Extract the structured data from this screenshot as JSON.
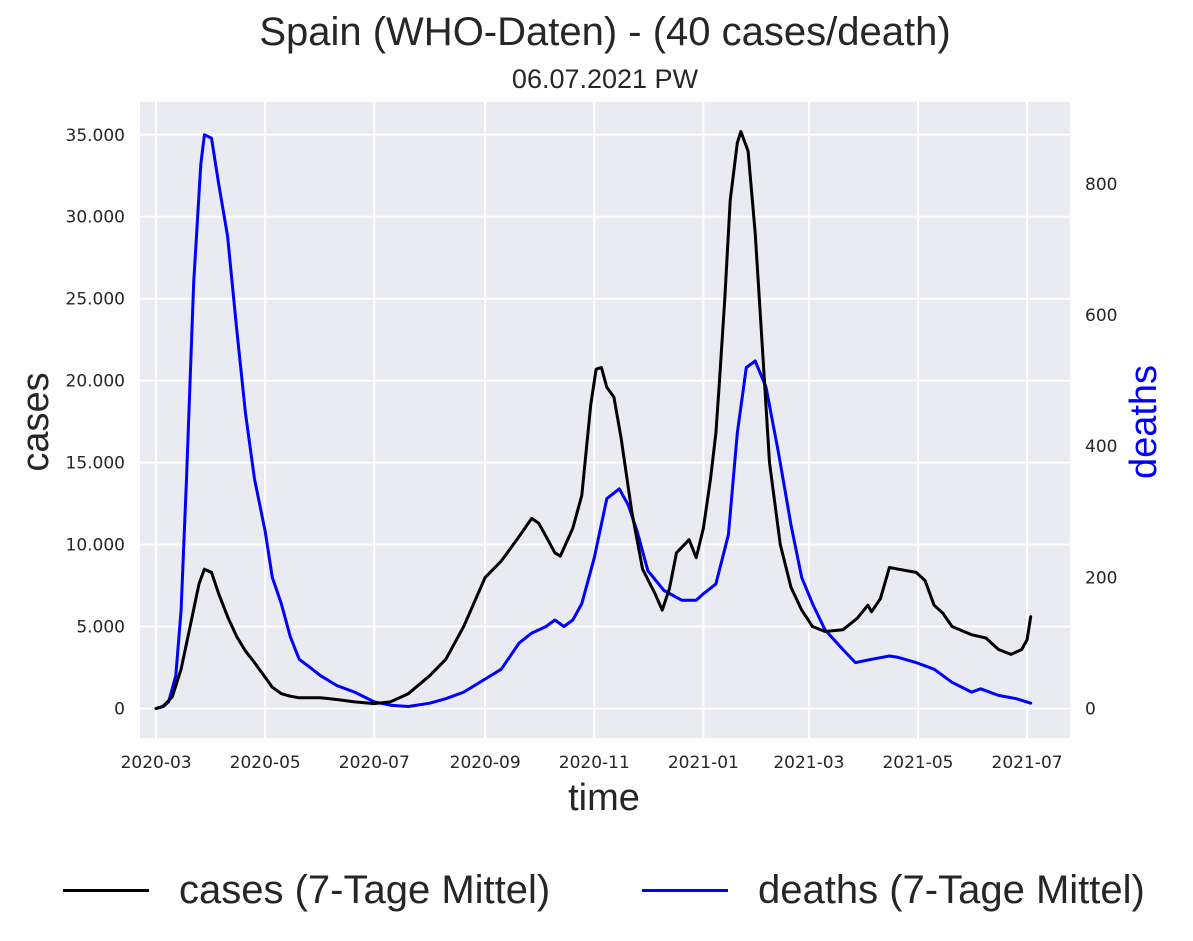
{
  "title": "Spain (WHO-Daten) - (40 cases/death)",
  "subtitle": "06.07.2021 PW",
  "colors": {
    "background": "#eaeaf2",
    "grid": "#ffffff",
    "cases": "#000000",
    "deaths": "#0000ff"
  },
  "chart_data": {
    "type": "line",
    "title": "Spain (WHO-Daten) - (40 cases/death)",
    "subtitle": "06.07.2021 PW",
    "xlabel": "time",
    "ylabel": "cases",
    "ylabel_right": "deaths",
    "xlim": [
      "2020-02-21",
      "2021-07-25"
    ],
    "ylim": [
      -1800,
      37000
    ],
    "ylim_right": [
      -45,
      925
    ],
    "x_ticks": [
      "2020-03-01",
      "2020-05-01",
      "2020-07-01",
      "2020-09-01",
      "2020-11-01",
      "2021-01-01",
      "2021-03-01",
      "2021-05-01",
      "2021-07-01"
    ],
    "x_tick_labels": [
      "2020-03",
      "2020-05",
      "2020-07",
      "2020-09",
      "2020-11",
      "2021-01",
      "2021-03",
      "2021-05",
      "2021-07"
    ],
    "y_ticks": [
      0,
      5000,
      10000,
      15000,
      20000,
      25000,
      30000,
      35000
    ],
    "y_tick_labels": [
      "0",
      "5.000",
      "10.000",
      "15.000",
      "20.000",
      "25.000",
      "30.000",
      "35.000"
    ],
    "y_ticks_right": [
      0,
      200,
      400,
      600,
      800
    ],
    "y_tick_labels_right": [
      "0",
      "200",
      "400",
      "600",
      "800"
    ],
    "grid": true,
    "legend_position": "bottom",
    "series": [
      {
        "name": "cases (7-Tage Mittel)",
        "axis": "left",
        "color": "#000000",
        "points": [
          [
            "2020-03-01",
            0
          ],
          [
            "2020-03-05",
            150
          ],
          [
            "2020-03-10",
            700
          ],
          [
            "2020-03-15",
            2400
          ],
          [
            "2020-03-20",
            5000
          ],
          [
            "2020-03-25",
            7600
          ],
          [
            "2020-03-28",
            8500
          ],
          [
            "2020-04-01",
            8300
          ],
          [
            "2020-04-05",
            7000
          ],
          [
            "2020-04-10",
            5600
          ],
          [
            "2020-04-15",
            4400
          ],
          [
            "2020-04-20",
            3500
          ],
          [
            "2020-04-25",
            2800
          ],
          [
            "2020-05-01",
            1900
          ],
          [
            "2020-05-05",
            1300
          ],
          [
            "2020-05-10",
            900
          ],
          [
            "2020-05-15",
            750
          ],
          [
            "2020-05-20",
            650
          ],
          [
            "2020-06-01",
            650
          ],
          [
            "2020-06-10",
            550
          ],
          [
            "2020-06-20",
            400
          ],
          [
            "2020-07-01",
            300
          ],
          [
            "2020-07-10",
            400
          ],
          [
            "2020-07-20",
            900
          ],
          [
            "2020-08-01",
            2000
          ],
          [
            "2020-08-10",
            3000
          ],
          [
            "2020-08-20",
            5000
          ],
          [
            "2020-09-01",
            8000
          ],
          [
            "2020-09-10",
            9000
          ],
          [
            "2020-09-20",
            10500
          ],
          [
            "2020-09-27",
            11600
          ],
          [
            "2020-10-01",
            11300
          ],
          [
            "2020-10-05",
            10500
          ],
          [
            "2020-10-10",
            9500
          ],
          [
            "2020-10-13",
            9300
          ],
          [
            "2020-10-20",
            11000
          ],
          [
            "2020-10-25",
            13000
          ],
          [
            "2020-10-30",
            18500
          ],
          [
            "2020-11-02",
            20700
          ],
          [
            "2020-11-05",
            20800
          ],
          [
            "2020-11-08",
            19600
          ],
          [
            "2020-11-12",
            19000
          ],
          [
            "2020-11-16",
            16500
          ],
          [
            "2020-11-22",
            12000
          ],
          [
            "2020-11-28",
            8500
          ],
          [
            "2020-12-05",
            7000
          ],
          [
            "2020-12-09",
            6000
          ],
          [
            "2020-12-13",
            7300
          ],
          [
            "2020-12-17",
            9500
          ],
          [
            "2020-12-24",
            10300
          ],
          [
            "2020-12-28",
            9200
          ],
          [
            "2021-01-01",
            11000
          ],
          [
            "2021-01-05",
            14000
          ],
          [
            "2021-01-08",
            16800
          ],
          [
            "2021-01-10",
            20000
          ],
          [
            "2021-01-13",
            25000
          ],
          [
            "2021-01-16",
            31000
          ],
          [
            "2021-01-20",
            34500
          ],
          [
            "2021-01-22",
            35200
          ],
          [
            "2021-01-26",
            34000
          ],
          [
            "2021-01-30",
            29000
          ],
          [
            "2021-02-03",
            22000
          ],
          [
            "2021-02-07",
            15000
          ],
          [
            "2021-02-13",
            10000
          ],
          [
            "2021-02-19",
            7400
          ],
          [
            "2021-02-25",
            6000
          ],
          [
            "2021-03-03",
            5000
          ],
          [
            "2021-03-10",
            4700
          ],
          [
            "2021-03-20",
            4800
          ],
          [
            "2021-03-28",
            5500
          ],
          [
            "2021-04-03",
            6300
          ],
          [
            "2021-04-05",
            5900
          ],
          [
            "2021-04-10",
            6700
          ],
          [
            "2021-04-15",
            8600
          ],
          [
            "2021-04-20",
            8500
          ],
          [
            "2021-04-30",
            8300
          ],
          [
            "2021-05-05",
            7800
          ],
          [
            "2021-05-10",
            6300
          ],
          [
            "2021-05-15",
            5800
          ],
          [
            "2021-05-20",
            5000
          ],
          [
            "2021-05-31",
            4500
          ],
          [
            "2021-06-08",
            4300
          ],
          [
            "2021-06-15",
            3600
          ],
          [
            "2021-06-22",
            3300
          ],
          [
            "2021-06-28",
            3600
          ],
          [
            "2021-07-01",
            4200
          ],
          [
            "2021-07-03",
            5600
          ]
        ]
      },
      {
        "name": "deaths (7-Tage Mittel)",
        "axis": "right",
        "color": "#0000ff",
        "points": [
          [
            "2020-03-01",
            0
          ],
          [
            "2020-03-05",
            3
          ],
          [
            "2020-03-08",
            10
          ],
          [
            "2020-03-12",
            50
          ],
          [
            "2020-03-15",
            150
          ],
          [
            "2020-03-18",
            350
          ],
          [
            "2020-03-22",
            650
          ],
          [
            "2020-03-26",
            830
          ],
          [
            "2020-03-28",
            875
          ],
          [
            "2020-04-01",
            870
          ],
          [
            "2020-04-05",
            800
          ],
          [
            "2020-04-10",
            720
          ],
          [
            "2020-04-15",
            580
          ],
          [
            "2020-04-20",
            450
          ],
          [
            "2020-04-25",
            350
          ],
          [
            "2020-05-01",
            270
          ],
          [
            "2020-05-05",
            200
          ],
          [
            "2020-05-10",
            160
          ],
          [
            "2020-05-15",
            110
          ],
          [
            "2020-05-20",
            75
          ],
          [
            "2020-05-25",
            65
          ],
          [
            "2020-06-01",
            50
          ],
          [
            "2020-06-10",
            35
          ],
          [
            "2020-06-20",
            25
          ],
          [
            "2020-07-01",
            10
          ],
          [
            "2020-07-10",
            5
          ],
          [
            "2020-07-20",
            3
          ],
          [
            "2020-08-01",
            8
          ],
          [
            "2020-08-10",
            15
          ],
          [
            "2020-08-20",
            25
          ],
          [
            "2020-09-01",
            45
          ],
          [
            "2020-09-10",
            60
          ],
          [
            "2020-09-20",
            100
          ],
          [
            "2020-09-27",
            115
          ],
          [
            "2020-10-05",
            125
          ],
          [
            "2020-10-10",
            135
          ],
          [
            "2020-10-15",
            125
          ],
          [
            "2020-10-20",
            135
          ],
          [
            "2020-10-25",
            160
          ],
          [
            "2020-11-01",
            230
          ],
          [
            "2020-11-08",
            320
          ],
          [
            "2020-11-15",
            335
          ],
          [
            "2020-11-20",
            310
          ],
          [
            "2020-11-25",
            270
          ],
          [
            "2020-12-01",
            210
          ],
          [
            "2020-12-10",
            180
          ],
          [
            "2020-12-20",
            165
          ],
          [
            "2020-12-28",
            165
          ],
          [
            "2021-01-01",
            175
          ],
          [
            "2021-01-08",
            190
          ],
          [
            "2021-01-15",
            265
          ],
          [
            "2021-01-20",
            420
          ],
          [
            "2021-01-25",
            520
          ],
          [
            "2021-01-30",
            530
          ],
          [
            "2021-02-05",
            490
          ],
          [
            "2021-02-12",
            390
          ],
          [
            "2021-02-19",
            280
          ],
          [
            "2021-02-25",
            200
          ],
          [
            "2021-03-03",
            160
          ],
          [
            "2021-03-10",
            120
          ],
          [
            "2021-03-20",
            90
          ],
          [
            "2021-03-27",
            70
          ],
          [
            "2021-04-05",
            75
          ],
          [
            "2021-04-15",
            80
          ],
          [
            "2021-04-20",
            78
          ],
          [
            "2021-04-30",
            70
          ],
          [
            "2021-05-10",
            60
          ],
          [
            "2021-05-20",
            40
          ],
          [
            "2021-05-31",
            25
          ],
          [
            "2021-06-05",
            30
          ],
          [
            "2021-06-15",
            20
          ],
          [
            "2021-06-25",
            15
          ],
          [
            "2021-07-03",
            8
          ]
        ]
      }
    ]
  }
}
